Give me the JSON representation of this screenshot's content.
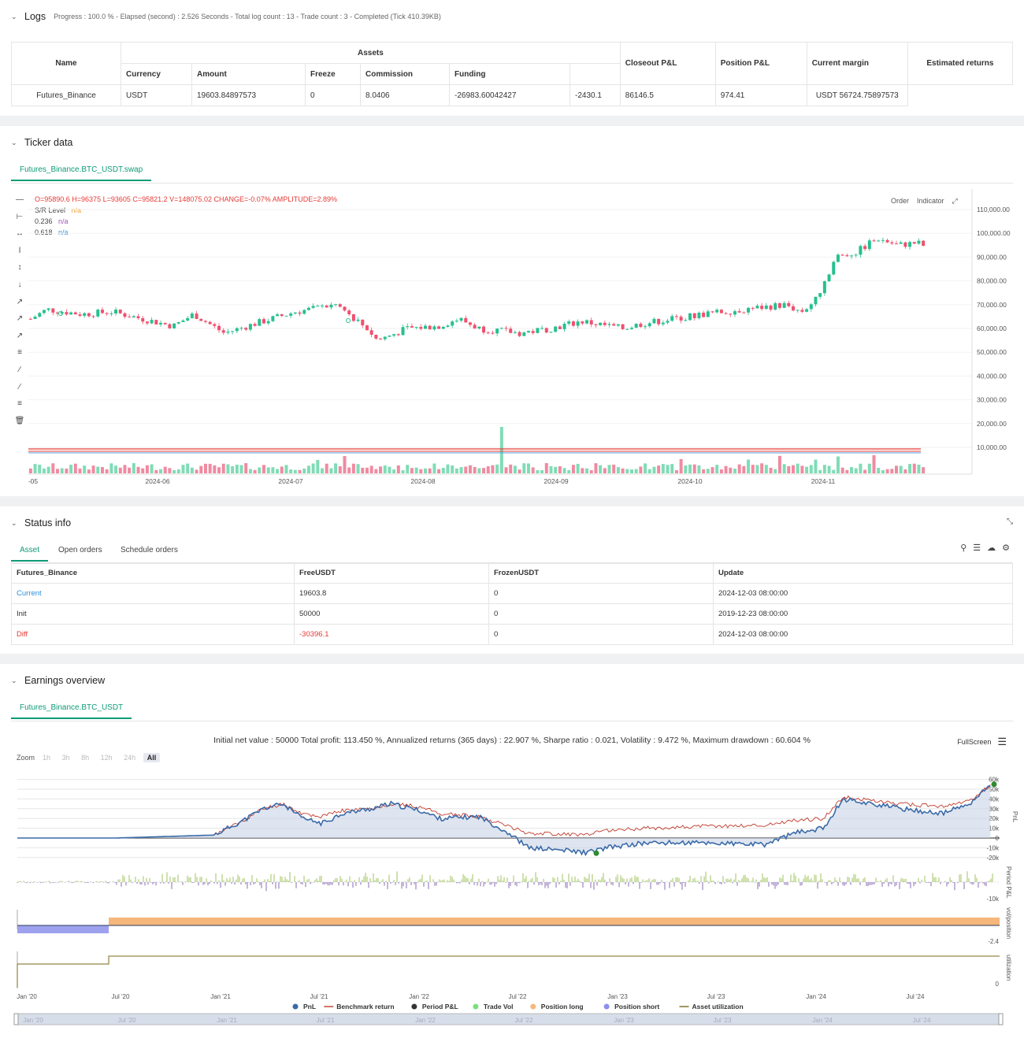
{
  "logs": {
    "title": "Logs",
    "subtitle": "Progress : 100.0 % - Elapsed (second) : 2.526  Seconds - Total log count : 13 - Trade count : 3 - Completed (Tick 410.39KB)",
    "headers": {
      "name": "Name",
      "assets": "Assets",
      "currency": "Currency",
      "amount": "Amount",
      "freeze": "Freeze",
      "commission": "Commission",
      "funding": "Funding",
      "closeout": "Closeout P&L",
      "position": "Position P&L",
      "margin": "Current margin",
      "estimated": "Estimated returns"
    },
    "row": {
      "name": "Futures_Binance",
      "currency": "USDT",
      "amount": "19603.84897573",
      "freeze": "0",
      "commission": "8.0406",
      "funding": "-26983.60042427",
      "closeout": "-2430.1",
      "position": "86146.5",
      "margin": "974.41",
      "estimated": "USDT 56724.75897573"
    }
  },
  "ticker": {
    "title": "Ticker data",
    "tab": "Futures_Binance.BTC_USDT.swap",
    "ohlc": "O=95890.6 H=96375 L=93605 C=95821.2 V=148075.02 CHANGE=-0.07% AMPLITUDE=2.89%",
    "legend": [
      {
        "label": "S/R Level",
        "value": "n/a",
        "color": "#f0a030"
      },
      {
        "label": "0.236",
        "value": "n/a",
        "color": "#9b59b6"
      },
      {
        "label": "0.618",
        "value": "n/a",
        "color": "#2b90d9"
      }
    ],
    "buttons": {
      "order": "Order",
      "indicator": "Indicator"
    },
    "y_ticks": [
      "110,000.00",
      "100,000.00",
      "90,000.00",
      "80,000.00",
      "70,000.00",
      "60,000.00",
      "50,000.00",
      "40,000.00",
      "30,000.00",
      "20,000.00",
      "10,000.00"
    ],
    "x_ticks": [
      "-05",
      "2024-06",
      "2024-07",
      "2024-08",
      "2024-09",
      "2024-10",
      "2024-11"
    ]
  },
  "status": {
    "title": "Status info",
    "tabs": [
      "Asset",
      "Open orders",
      "Schedule orders"
    ],
    "headers": [
      "Futures_Binance",
      "FreeUSDT",
      "FrozenUSDT",
      "Update"
    ],
    "rows": [
      {
        "label": "Current",
        "free": "19603.8",
        "frozen": "0",
        "update": "2024-12-03 08:00:00"
      },
      {
        "label": "Init",
        "free": "50000",
        "frozen": "0",
        "update": "2019-12-23 08:00:00"
      },
      {
        "label": "Diff",
        "free": "-30396.1",
        "frozen": "0",
        "update": "2024-12-03 08:00:00"
      }
    ]
  },
  "earnings": {
    "title": "Earnings overview",
    "tab": "Futures_Binance.BTC_USDT",
    "summary": "Initial net value : 50000  Total profit: 113.450 %, Annualized returns (365 days) : 22.907 %, Sharpe ratio : 0.021, Volatility : 9.472 %, Maximum drawdown : 60.604 %",
    "fullscreen": "FullScreen",
    "zoom_label": "Zoom",
    "zoom": [
      "1h",
      "3h",
      "8h",
      "12h",
      "24h",
      "All"
    ],
    "pnl_ticks": [
      "60k",
      "50k",
      "40k",
      "30k",
      "20k",
      "10k",
      "0",
      "-10k",
      "-20k"
    ],
    "period_tick": "-10k",
    "vol_tick": "-2.4",
    "util_tick": "0",
    "axis_labels": {
      "pnl": "PnL",
      "period": "Period P&L",
      "vol": "vol/position",
      "util": "utilization"
    },
    "x_ticks": [
      "Jan '20",
      "Jul '20",
      "Jan '21",
      "Jul '21",
      "Jan '22",
      "Jul '22",
      "Jan '23",
      "Jul '23",
      "Jan '24",
      "Jul '24"
    ],
    "legend": [
      {
        "label": "PnL",
        "color": "#3a6aa8",
        "shape": "dot"
      },
      {
        "label": "Benchmark return",
        "color": "#c0392b",
        "shape": "line"
      },
      {
        "label": "Period P&L",
        "color": "#333333",
        "shape": "dot"
      },
      {
        "label": "Trade Vol",
        "color": "#7be07b",
        "shape": "dot"
      },
      {
        "label": "Position long",
        "color": "#f5b77a",
        "shape": "dot"
      },
      {
        "label": "Position short",
        "color": "#8c8ef0",
        "shape": "dot"
      },
      {
        "label": "Asset utilization",
        "color": "#7a6a1a",
        "shape": "line"
      }
    ]
  }
}
